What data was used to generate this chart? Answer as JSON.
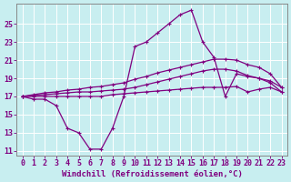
{
  "xlabel": "Windchill (Refroidissement éolien,°C)",
  "bg_color": "#c8eef0",
  "line_color": "#800080",
  "hours": [
    0,
    1,
    2,
    3,
    4,
    5,
    6,
    7,
    8,
    9,
    10,
    11,
    12,
    13,
    14,
    15,
    16,
    17,
    18,
    19,
    20,
    21,
    22,
    23
  ],
  "temp": [
    17,
    16.7,
    16.7,
    16.0,
    13.5,
    13.0,
    11.2,
    11.2,
    13.5,
    17.0,
    22.5,
    23.0,
    24.0,
    25.0,
    26.0,
    26.5,
    23.0,
    21.3,
    17.0,
    19.5,
    19.2,
    19.0,
    18.5,
    17.5
  ],
  "line_flat": [
    17,
    17.0,
    17.0,
    17.0,
    17.0,
    17.0,
    17.0,
    17.0,
    17.2,
    17.3,
    17.4,
    17.5,
    17.6,
    17.7,
    17.8,
    17.9,
    18.0,
    18.0,
    18.0,
    18.1,
    17.5,
    17.8,
    18.0,
    17.5
  ],
  "line_mid": [
    17,
    17.1,
    17.2,
    17.3,
    17.4,
    17.5,
    17.5,
    17.6,
    17.7,
    17.8,
    18.0,
    18.3,
    18.6,
    18.9,
    19.2,
    19.5,
    19.8,
    20.0,
    20.0,
    19.8,
    19.3,
    19.0,
    18.7,
    18.0
  ],
  "line_high": [
    17,
    17.2,
    17.4,
    17.5,
    17.7,
    17.8,
    18.0,
    18.1,
    18.3,
    18.5,
    18.9,
    19.2,
    19.6,
    19.9,
    20.2,
    20.5,
    20.8,
    21.1,
    21.1,
    21.0,
    20.5,
    20.2,
    19.5,
    18.0
  ],
  "ylim": [
    10.5,
    27.2
  ],
  "yticks": [
    11,
    13,
    15,
    17,
    19,
    21,
    23,
    25
  ],
  "xlim": [
    -0.5,
    23.5
  ],
  "xticks": [
    0,
    1,
    2,
    3,
    4,
    5,
    6,
    7,
    8,
    9,
    10,
    11,
    12,
    13,
    14,
    15,
    16,
    17,
    18,
    19,
    20,
    21,
    22,
    23
  ],
  "markersize": 3,
  "linewidth": 0.9,
  "tick_fontsize": 6,
  "label_fontsize": 6.5
}
